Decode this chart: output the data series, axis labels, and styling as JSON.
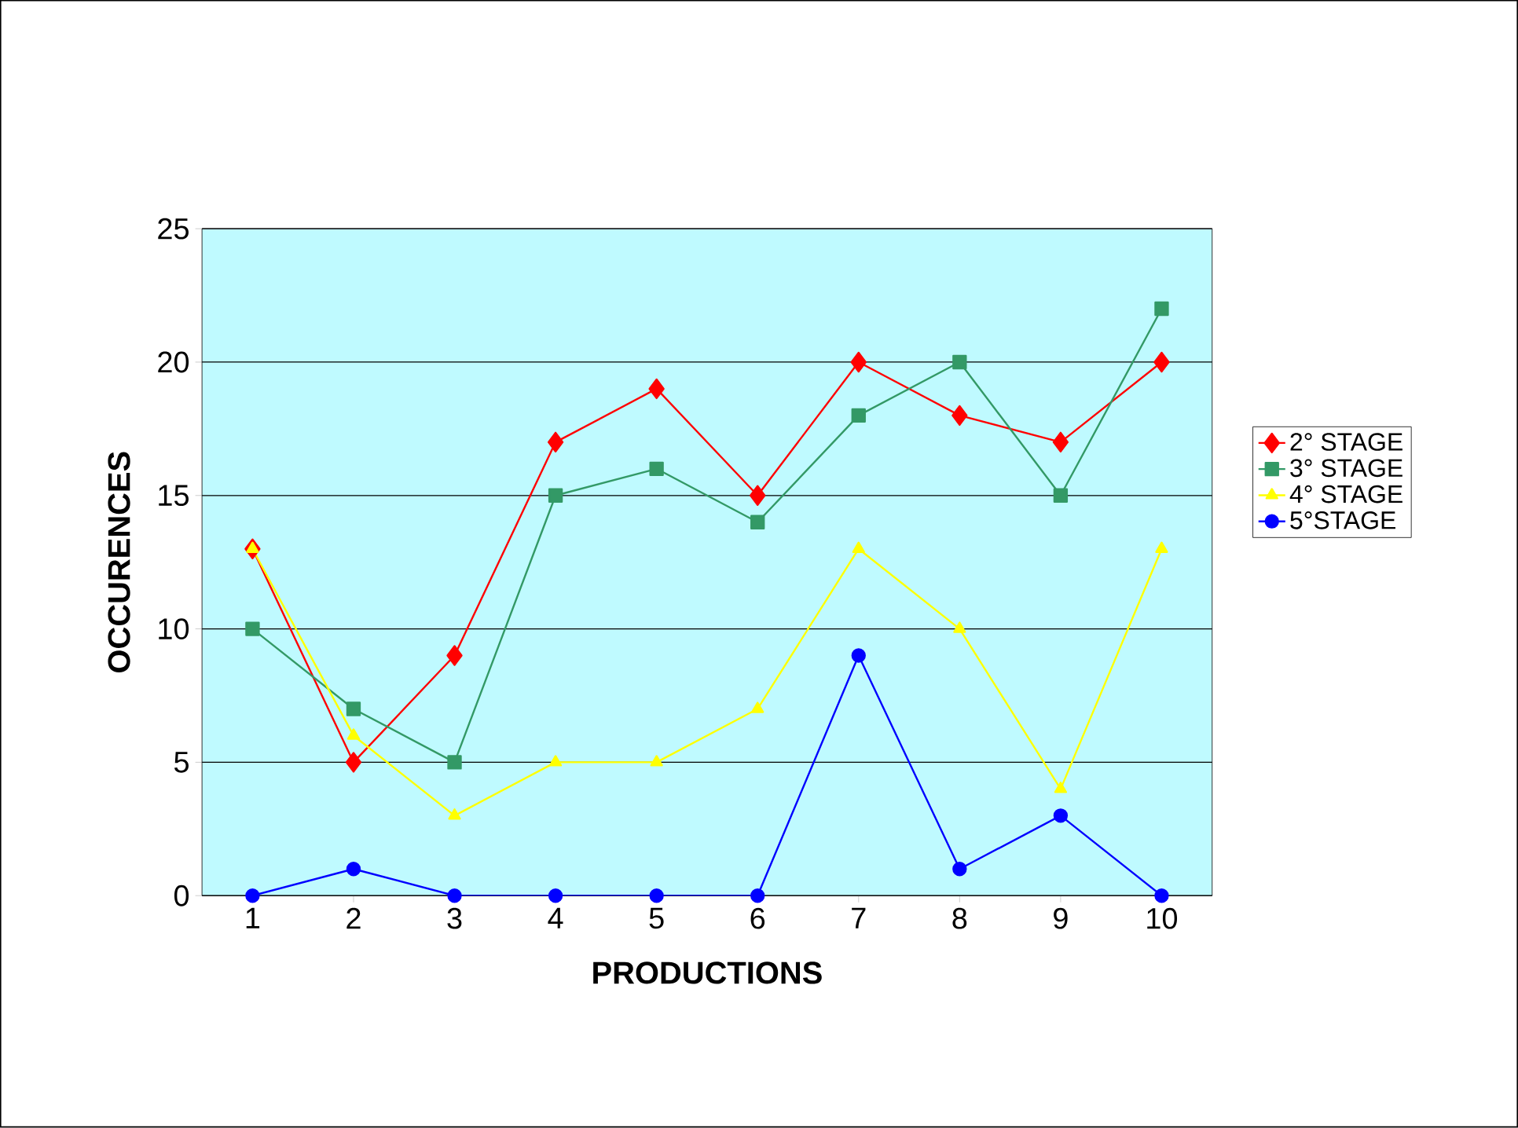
{
  "chart_data": {
    "type": "line",
    "xlabel": "PRODUCTIONS",
    "ylabel": "OCCURENCES",
    "categories": [
      "1",
      "2",
      "3",
      "4",
      "5",
      "6",
      "7",
      "8",
      "9",
      "10"
    ],
    "series": [
      {
        "name": "2° STAGE",
        "color": "#ff0000",
        "marker": "diamond",
        "values": [
          13,
          5,
          9,
          17,
          19,
          15,
          20,
          18,
          17,
          20
        ]
      },
      {
        "name": "3° STAGE",
        "color": "#339966",
        "marker": "square",
        "values": [
          10,
          7,
          5,
          15,
          16,
          14,
          18,
          20,
          15,
          22
        ]
      },
      {
        "name": "4° STAGE",
        "color": "#ffff00",
        "marker": "triangle",
        "values": [
          13,
          6,
          3,
          5,
          5,
          7,
          13,
          10,
          4,
          13
        ]
      },
      {
        "name": "5°STAGE",
        "color": "#0000ff",
        "marker": "circle",
        "values": [
          0,
          1,
          0,
          0,
          0,
          0,
          9,
          1,
          3,
          0
        ]
      }
    ],
    "ylim": [
      0,
      25
    ],
    "yticks": [
      0,
      5,
      10,
      15,
      20,
      25
    ],
    "grid": "y",
    "legend": "right",
    "line_style": "solid"
  }
}
